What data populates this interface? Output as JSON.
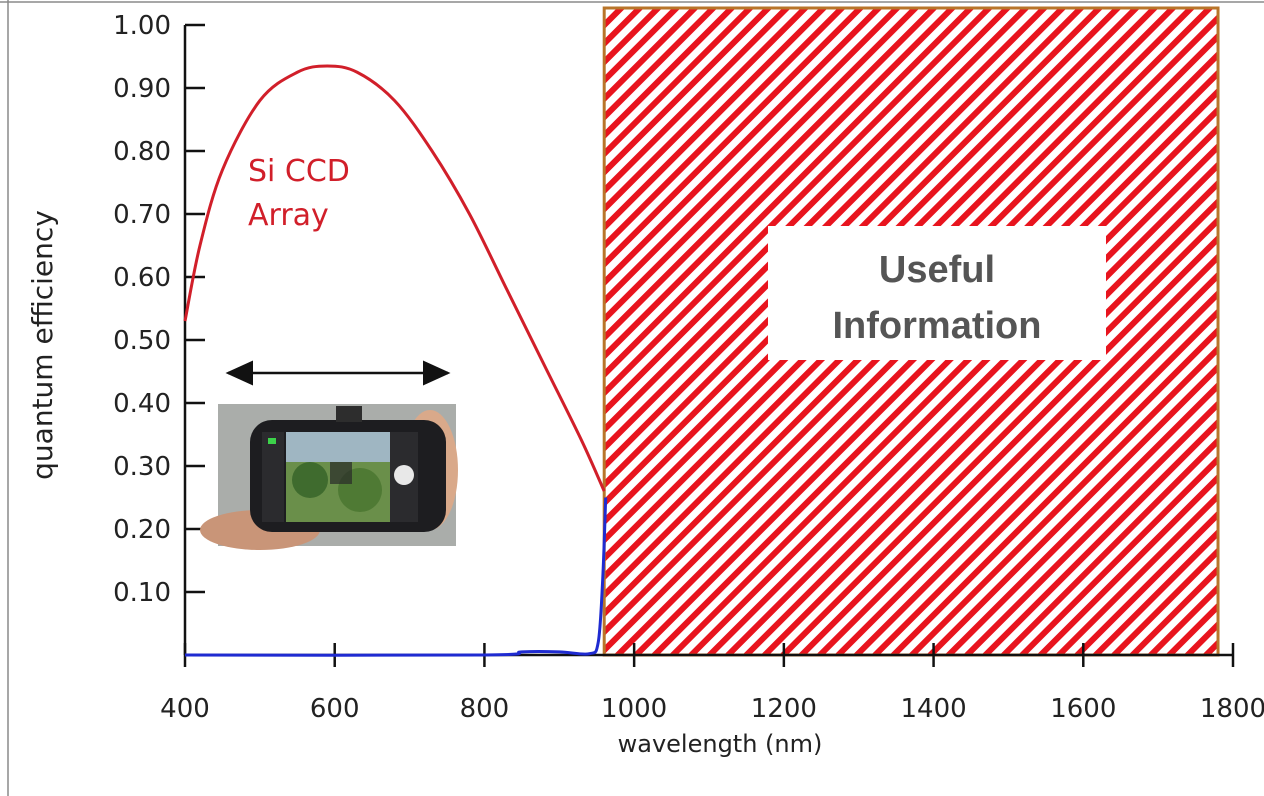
{
  "colors": {
    "si_curve": "#d11f2a",
    "ingaas_curve": "#1f2bd1",
    "hatch_red": "#e8141e",
    "hatch_border": "#b8752a",
    "axis": "#111111"
  },
  "photo": {
    "icon": "smartphone-camera-photo"
  },
  "annotation": {
    "arrow": "double-headed-arrow",
    "useful_line1": "Useful",
    "useful_line2": "Information",
    "region_x": [
      960,
      1780
    ]
  },
  "chart_data": {
    "type": "line",
    "xlabel": "wavelength (nm)",
    "ylabel": "quantum efficiency",
    "xlim": [
      400,
      1800
    ],
    "ylim": [
      0,
      1.0
    ],
    "xticks": [
      "400",
      "600",
      "800",
      "1000",
      "1200",
      "1400",
      "1600",
      "1800"
    ],
    "yticks": [
      "0.10",
      "0.20",
      "0.30",
      "0.40",
      "0.50",
      "0.60",
      "0.70",
      "0.80",
      "0.90",
      "1.00"
    ],
    "grid": false,
    "series": [
      {
        "name": "Si CCD Array",
        "x": [
          400,
          420,
          450,
          500,
          550,
          590,
          630,
          680,
          730,
          780,
          830,
          880,
          930,
          960
        ],
        "y": [
          0.53,
          0.65,
          0.77,
          0.88,
          0.925,
          0.935,
          0.925,
          0.88,
          0.8,
          0.7,
          0.58,
          0.46,
          0.34,
          0.26
        ]
      },
      {
        "x": [
          400,
          800,
          850,
          900,
          940,
          952,
          958,
          962
        ],
        "y": [
          0.0,
          0.0,
          0.005,
          0.005,
          0.002,
          0.02,
          0.12,
          0.25
        ]
      }
    ],
    "series_labels": [
      "Si CCD",
      "Array"
    ]
  }
}
